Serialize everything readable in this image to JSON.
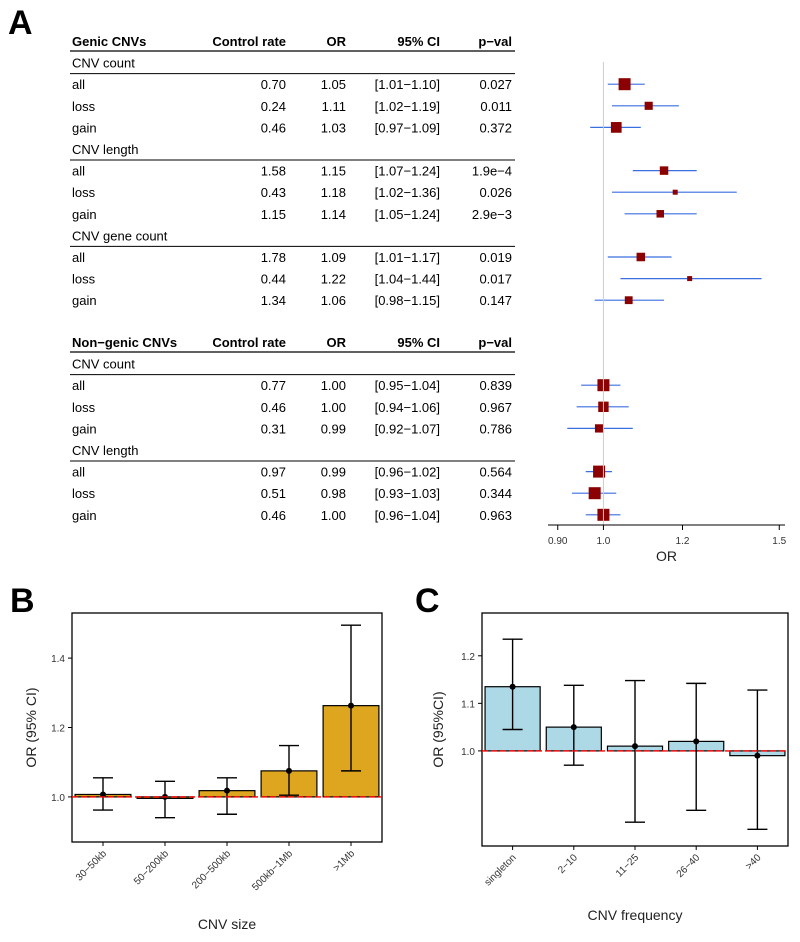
{
  "panels": {
    "a": "A",
    "b": "B",
    "c": "C"
  },
  "table": {
    "col_rate": "Control rate",
    "col_or": "OR",
    "col_ci": "95% CI",
    "col_p": "p−val",
    "sections": [
      {
        "title": "Genic CNVs",
        "groups": [
          {
            "name": "CNV count",
            "rows": [
              {
                "label": "all",
                "rate": "0.70",
                "or": "1.05",
                "ci": "[1.01−1.10]",
                "p": "0.027",
                "est": 1.05,
                "lo": 1.01,
                "hi": 1.1
              },
              {
                "label": "loss",
                "rate": "0.24",
                "or": "1.11",
                "ci": "[1.02−1.19]",
                "p": "0.011",
                "est": 1.11,
                "lo": 1.02,
                "hi": 1.19
              },
              {
                "label": "gain",
                "rate": "0.46",
                "or": "1.03",
                "ci": "[0.97−1.09]",
                "p": "0.372",
                "est": 1.03,
                "lo": 0.97,
                "hi": 1.09
              }
            ]
          },
          {
            "name": "CNV length",
            "rows": [
              {
                "label": "all",
                "rate": "1.58",
                "or": "1.15",
                "ci": "[1.07−1.24]",
                "p": "1.9e−4",
                "est": 1.15,
                "lo": 1.07,
                "hi": 1.24
              },
              {
                "label": "loss",
                "rate": "0.43",
                "or": "1.18",
                "ci": "[1.02−1.36]",
                "p": "0.026",
                "est": 1.18,
                "lo": 1.02,
                "hi": 1.36
              },
              {
                "label": "gain",
                "rate": "1.15",
                "or": "1.14",
                "ci": "[1.05−1.24]",
                "p": "2.9e−3",
                "est": 1.14,
                "lo": 1.05,
                "hi": 1.24
              }
            ]
          },
          {
            "name": "CNV gene count",
            "rows": [
              {
                "label": "all",
                "rate": "1.78",
                "or": "1.09",
                "ci": "[1.01−1.17]",
                "p": "0.019",
                "est": 1.09,
                "lo": 1.01,
                "hi": 1.17
              },
              {
                "label": "loss",
                "rate": "0.44",
                "or": "1.22",
                "ci": "[1.04−1.44]",
                "p": "0.017",
                "est": 1.22,
                "lo": 1.04,
                "hi": 1.44
              },
              {
                "label": "gain",
                "rate": "1.34",
                "or": "1.06",
                "ci": "[0.98−1.15]",
                "p": "0.147",
                "est": 1.06,
                "lo": 0.98,
                "hi": 1.15
              }
            ]
          }
        ]
      },
      {
        "title": "Non−genic CNVs",
        "groups": [
          {
            "name": "CNV count",
            "rows": [
              {
                "label": "all",
                "rate": "0.77",
                "or": "1.00",
                "ci": "[0.95−1.04]",
                "p": "0.839",
                "est": 1.0,
                "lo": 0.95,
                "hi": 1.04
              },
              {
                "label": "loss",
                "rate": "0.46",
                "or": "1.00",
                "ci": "[0.94−1.06]",
                "p": "0.967",
                "est": 1.0,
                "lo": 0.94,
                "hi": 1.06
              },
              {
                "label": "gain",
                "rate": "0.31",
                "or": "0.99",
                "ci": "[0.92−1.07]",
                "p": "0.786",
                "est": 0.99,
                "lo": 0.92,
                "hi": 1.07
              }
            ]
          },
          {
            "name": "CNV length",
            "rows": [
              {
                "label": "all",
                "rate": "0.97",
                "or": "0.99",
                "ci": "[0.96−1.02]",
                "p": "0.564",
                "est": 0.99,
                "lo": 0.96,
                "hi": 1.02
              },
              {
                "label": "loss",
                "rate": "0.51",
                "or": "0.98",
                "ci": "[0.93−1.03]",
                "p": "0.344",
                "est": 0.98,
                "lo": 0.93,
                "hi": 1.03
              },
              {
                "label": "gain",
                "rate": "0.46",
                "or": "1.00",
                "ci": "[0.96−1.04]",
                "p": "0.963",
                "est": 1.0,
                "lo": 0.96,
                "hi": 1.04
              }
            ]
          }
        ]
      }
    ]
  },
  "chart_data": [
    {
      "type": "forest",
      "xlabel": "OR",
      "xscale": "log",
      "xlim": [
        0.88,
        1.52
      ],
      "xticks": [
        0.9,
        1.0,
        1.2,
        1.5
      ],
      "xtick_labels": [
        "0.90",
        "1.0",
        "1.2",
        "1.5"
      ],
      "reference": 1.0,
      "colors": {
        "point": "#8b0000",
        "ci": "#3a6fe0",
        "ref": "#cccccc"
      }
    },
    {
      "type": "bar",
      "xlabel": "CNV size",
      "ylabel": "OR (95% CI)",
      "categories": [
        "30−50kb",
        "50−200kb",
        "200−500kb",
        "500kb−1Mb",
        ">1Mb"
      ],
      "values": [
        1.007,
        1.0,
        1.018,
        1.075,
        1.263
      ],
      "ci_low": [
        0.962,
        0.94,
        0.95,
        1.005,
        1.075
      ],
      "ci_high": [
        1.055,
        1.045,
        1.055,
        1.148,
        1.495
      ],
      "ylim": [
        0.87,
        1.53
      ],
      "yticks": [
        1.0,
        1.2,
        1.4
      ],
      "ytick_labels": [
        "1.0",
        "1.2",
        "1.4"
      ],
      "reference": 1.0,
      "colors": {
        "bar": "#dea51e",
        "ref": "#ff0000"
      }
    },
    {
      "type": "bar",
      "xlabel": "CNV frequency",
      "ylabel": "OR (95%CI)",
      "categories": [
        "singleton",
        "2−10",
        "11−25",
        "26−40",
        ">40"
      ],
      "values": [
        1.135,
        1.05,
        1.01,
        1.02,
        0.99
      ],
      "ci_low": [
        1.045,
        0.97,
        0.85,
        0.875,
        0.835
      ],
      "ci_high": [
        1.235,
        1.138,
        1.148,
        1.142,
        1.128
      ],
      "ylim": [
        0.8,
        1.29
      ],
      "yticks": [
        1.0,
        1.1,
        1.2
      ],
      "ytick_labels": [
        "1.0",
        "1.1",
        "1.2"
      ],
      "reference": 1.0,
      "colors": {
        "bar": "#add8e6",
        "ref": "#ff0000"
      }
    }
  ]
}
